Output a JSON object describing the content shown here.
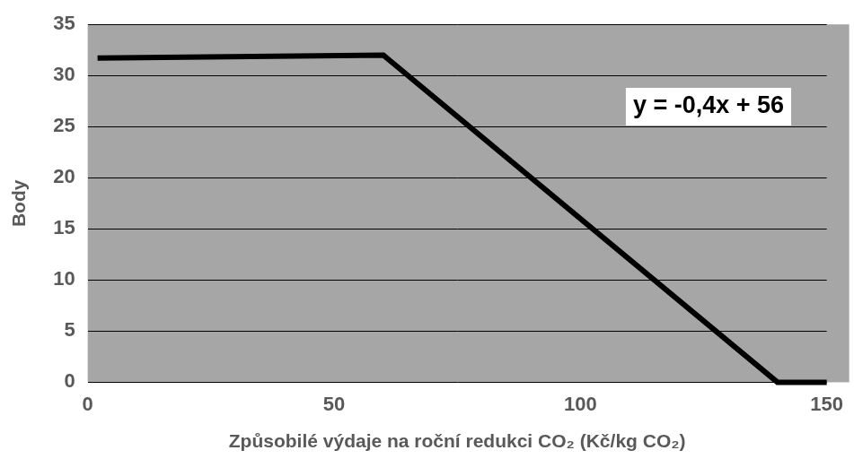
{
  "chart_data": {
    "type": "line",
    "xlabel": "Způsobilé výdaje na roční redukci CO₂ (Kč/kg CO₂)",
    "ylabel": "Body",
    "x": [
      2,
      60,
      140,
      150
    ],
    "values": [
      31.7,
      32,
      0,
      0
    ],
    "color": "#000000",
    "marker": "none",
    "line_style": "solid",
    "annotations": [
      "y = -0,4x + 56"
    ],
    "xlim": [
      0,
      150
    ],
    "xticks": [
      0,
      50,
      100,
      150
    ],
    "ylim": [
      0,
      35
    ],
    "yticks": [
      0,
      5,
      10,
      15,
      20,
      25,
      30,
      35
    ],
    "grid": true
  }
}
